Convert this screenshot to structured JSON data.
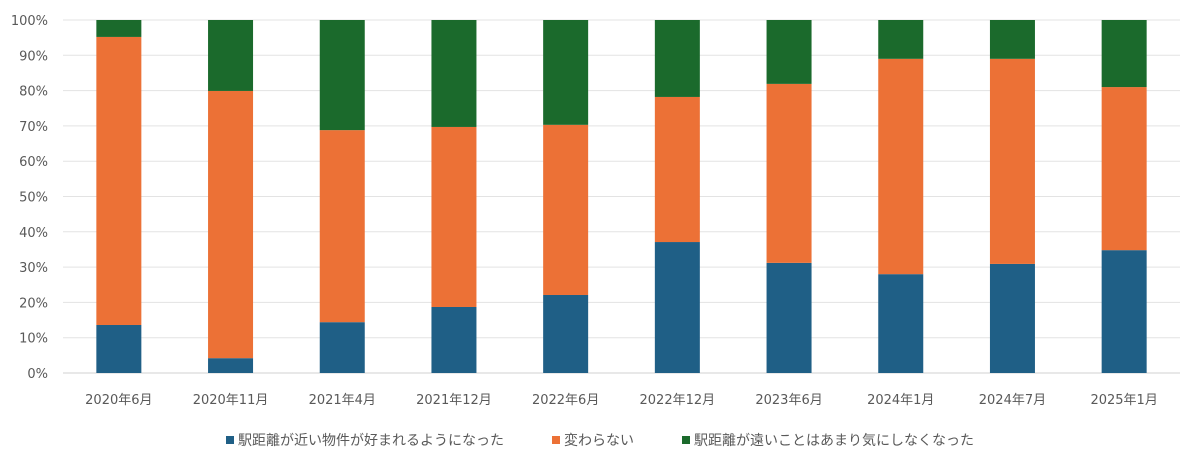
{
  "chart_data": {
    "type": "bar",
    "stacked": true,
    "title": "",
    "xlabel": "",
    "ylabel": "",
    "ylim": [
      0,
      100
    ],
    "yticks": [
      "0%",
      "10%",
      "20%",
      "30%",
      "40%",
      "50%",
      "60%",
      "70%",
      "80%",
      "90%",
      "100%"
    ],
    "grid": true,
    "legend_position": "bottom",
    "categories": [
      "2020年6月",
      "2020年11月",
      "2021年4月",
      "2021年12月",
      "2022年6月",
      "2022年12月",
      "2023年6月",
      "2024年1月",
      "2024年7月",
      "2025年1月"
    ],
    "series": [
      {
        "name": "駅距離が近い物件が好まれるようになった",
        "color": "#1f5f86",
        "values": [
          13.6,
          4.2,
          14.4,
          18.7,
          22.1,
          37.1,
          31.2,
          28.0,
          30.9,
          34.8
        ]
      },
      {
        "name": "変わらない",
        "color": "#ec7136",
        "values": [
          81.6,
          75.7,
          54.4,
          51.0,
          48.2,
          41.1,
          50.7,
          61.0,
          58.1,
          46.2
        ]
      },
      {
        "name": "駅距離が遠いことはあまり気にしなくなった",
        "color": "#1b6a2c",
        "values": [
          4.8,
          20.1,
          31.2,
          30.3,
          29.7,
          21.8,
          18.1,
          11.0,
          11.0,
          19.0
        ]
      }
    ]
  }
}
